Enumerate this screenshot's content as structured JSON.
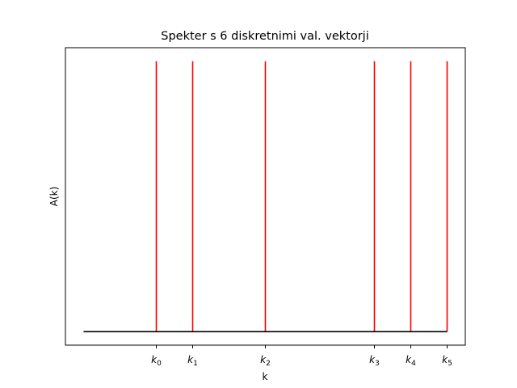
{
  "chart_data": {
    "type": "line",
    "title": "Spekter s 6 diskretnimi val. vektorji",
    "xlabel": "k",
    "ylabel": "A(k)",
    "grid": false,
    "legend": "none",
    "xlim": [
      -2.5,
      8.5
    ],
    "ylim": [
      -0.05,
      1.05
    ],
    "baseline": {
      "x_start": -2,
      "x_end": 8,
      "y": 0,
      "color": "#000000"
    },
    "spikes": [
      {
        "label": "k",
        "sub": "0",
        "x": 0,
        "y": 1
      },
      {
        "label": "k",
        "sub": "1",
        "x": 1,
        "y": 1
      },
      {
        "label": "k",
        "sub": "2",
        "x": 3,
        "y": 1
      },
      {
        "label": "k",
        "sub": "3",
        "x": 6,
        "y": 1
      },
      {
        "label": "k",
        "sub": "4",
        "x": 7,
        "y": 1
      },
      {
        "label": "k",
        "sub": "5",
        "x": 8,
        "y": 1
      }
    ],
    "spike_color": "#ff0000"
  }
}
